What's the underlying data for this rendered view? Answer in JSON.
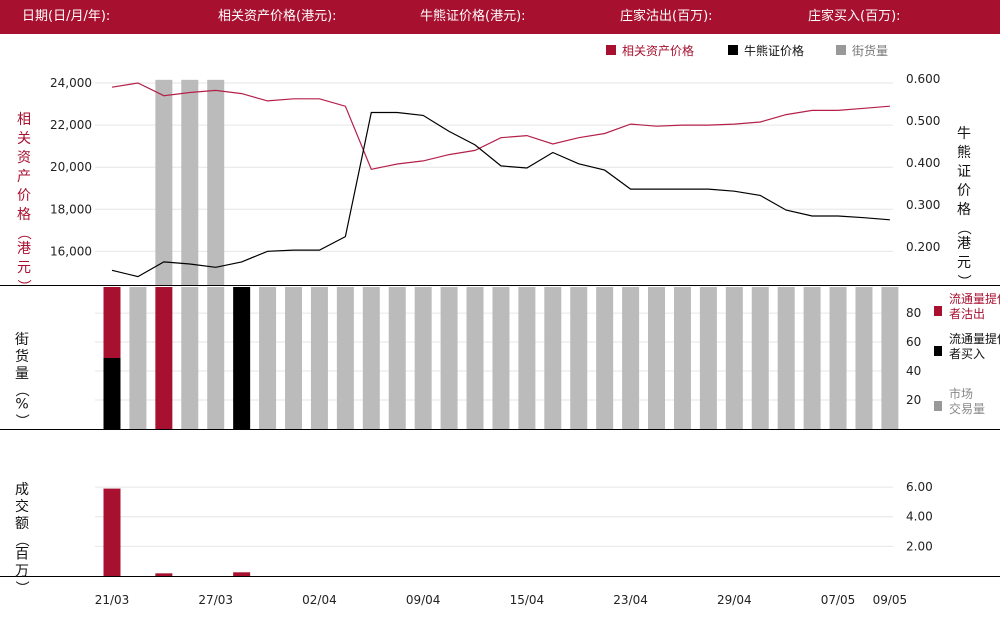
{
  "header": {
    "date_label": "日期(日/月/年):",
    "underlying_label": "相关资产价格(港元):",
    "cbbc_label": "牛熊证价格(港元):",
    "sell_label": "庄家沽出(百万):",
    "buy_label": "庄家买入(百万):"
  },
  "colors": {
    "brand": "#a8102f",
    "underlying_line": "#b5204a",
    "cbbc_line": "#000000",
    "market": "#bbbbbb",
    "legend_market": "#999999"
  },
  "chart_data": [
    {
      "type": "line",
      "legend": [
        {
          "key": "underlying",
          "label": "相关资产价格"
        },
        {
          "key": "cbbc",
          "label": "牛熊证价格"
        },
        {
          "key": "outstanding",
          "label": "街货量"
        }
      ],
      "left_axis": {
        "label": "相关资产价格(港元)",
        "min": 14400,
        "max": 25000,
        "ticks": [
          "16,000",
          "18,000",
          "20,000",
          "22,000",
          "24,000"
        ],
        "tick_values": [
          16000,
          18000,
          20000,
          22000,
          24000
        ]
      },
      "right_axis": {
        "label": "牛熊证价格(港元)",
        "min": 0.11,
        "max": 0.64,
        "ticks": [
          "0.200",
          "0.300",
          "0.400",
          "0.500",
          "0.600"
        ],
        "tick_values": [
          0.2,
          0.3,
          0.4,
          0.5,
          0.6
        ]
      },
      "series": [
        {
          "key": "underlying",
          "values": [
            23800,
            24000,
            23400,
            23550,
            23650,
            23500,
            23150,
            23250,
            23250,
            22900,
            19900,
            20150,
            20300,
            20600,
            20800,
            21400,
            21500,
            21100,
            21400,
            21600,
            22050,
            21950,
            22000,
            22000,
            22050,
            22150,
            22500,
            22700,
            22700,
            22800,
            22900
          ]
        },
        {
          "key": "cbbc",
          "values": [
            0.145,
            0.13,
            0.165,
            0.16,
            0.152,
            0.165,
            0.19,
            0.193,
            0.193,
            0.225,
            0.52,
            0.52,
            0.513,
            0.475,
            0.443,
            0.393,
            0.388,
            0.425,
            0.398,
            0.383,
            0.338,
            0.338,
            0.338,
            0.338,
            0.333,
            0.323,
            0.288,
            0.274,
            0.274,
            0.27,
            0.265
          ]
        },
        {
          "key": "outstanding_upper",
          "values": [
            null,
            null,
            92,
            92,
            92,
            null,
            null,
            null,
            null,
            null,
            null,
            null,
            null,
            null,
            null,
            null,
            null,
            null,
            null,
            null,
            null,
            null,
            null,
            null,
            null,
            null,
            null,
            null,
            null,
            null,
            null
          ]
        }
      ]
    },
    {
      "type": "bar",
      "axis_label": "街货量(%)",
      "ylim": [
        0,
        98
      ],
      "ticks": [
        "20",
        "40",
        "60",
        "80"
      ],
      "tick_values": [
        20,
        40,
        60,
        80
      ],
      "legend": [
        {
          "key": "sell",
          "label": "流通量提供者沽出"
        },
        {
          "key": "buy",
          "label": "流通量提供者买入"
        },
        {
          "key": "market",
          "label": "市场交易量"
        }
      ],
      "bars": [
        {
          "sell": 49,
          "buy": 49
        },
        {
          "market": 98
        },
        {
          "sell": 98
        },
        {
          "market": 98
        },
        {
          "market": 98
        },
        {
          "buy": 98
        },
        {
          "market": 98
        },
        {
          "market": 98
        },
        {
          "market": 98
        },
        {
          "market": 98
        },
        {
          "market": 98
        },
        {
          "market": 98
        },
        {
          "market": 98
        },
        {
          "market": 98
        },
        {
          "market": 98
        },
        {
          "market": 98
        },
        {
          "market": 98
        },
        {
          "market": 98
        },
        {
          "market": 98
        },
        {
          "market": 98
        },
        {
          "market": 98
        },
        {
          "market": 98
        },
        {
          "market": 98
        },
        {
          "market": 98
        },
        {
          "market": 98
        },
        {
          "market": 98
        },
        {
          "market": 98
        },
        {
          "market": 98
        },
        {
          "market": 98
        },
        {
          "market": 98
        },
        {
          "market": 98
        }
      ]
    },
    {
      "type": "bar",
      "axis_label": "成交额(百万)",
      "ylim": [
        0,
        8.1
      ],
      "ticks": [
        "2.00",
        "4.00",
        "6.00"
      ],
      "tick_values": [
        2,
        4,
        6
      ],
      "values": [
        5.9,
        0,
        0.18,
        0,
        0,
        0.25,
        0,
        0,
        0,
        0,
        0,
        0,
        0,
        0,
        0,
        0,
        0,
        0,
        0,
        0,
        0,
        0,
        0,
        0,
        0,
        0,
        0,
        0,
        0,
        0,
        0
      ]
    }
  ],
  "x_axis": {
    "count": 31,
    "labels": [
      {
        "i": 0,
        "text": "21/03"
      },
      {
        "i": 4,
        "text": "27/03"
      },
      {
        "i": 8,
        "text": "02/04"
      },
      {
        "i": 12,
        "text": "09/04"
      },
      {
        "i": 16,
        "text": "15/04"
      },
      {
        "i": 20,
        "text": "23/04"
      },
      {
        "i": 24,
        "text": "29/04"
      },
      {
        "i": 28,
        "text": "07/05"
      },
      {
        "i": 30,
        "text": "09/05"
      }
    ]
  }
}
